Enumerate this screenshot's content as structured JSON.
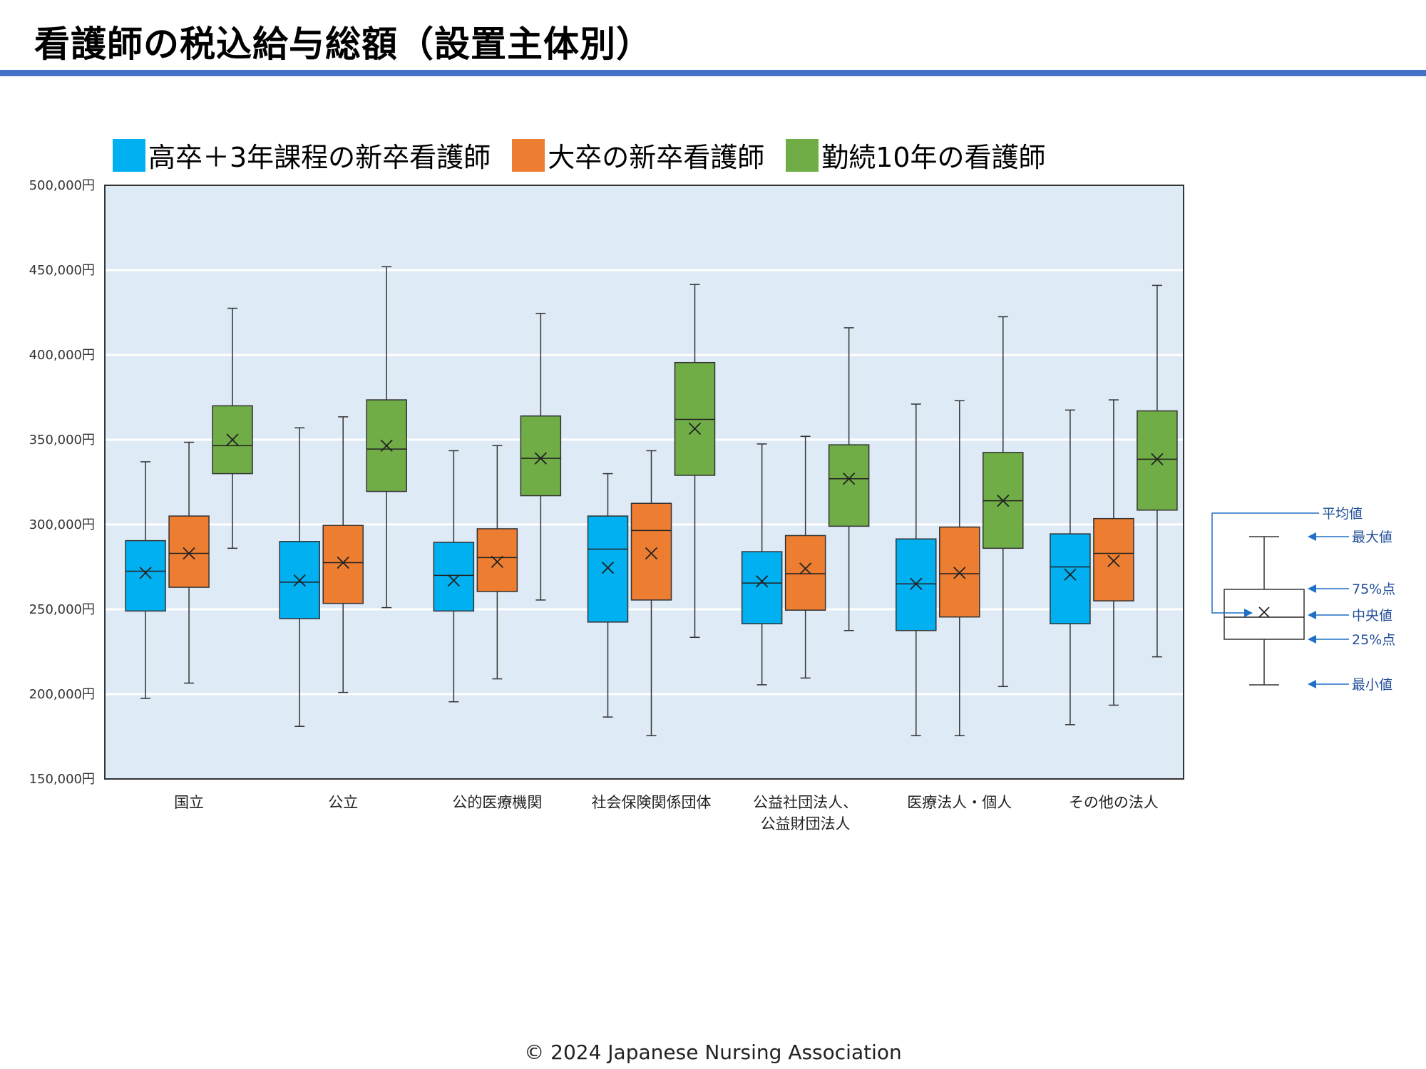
{
  "title": "看護師の税込給与総額（設置主体別）",
  "footer": "© 2024 Japanese Nursing Association",
  "colors": {
    "series_1": "#00B0F0",
    "series_2": "#ED7D31",
    "series_3": "#70AD47",
    "plot_bg": "#DEEAF6",
    "accent_rule": "#4472C4",
    "key_arrow": "#1F6FC5"
  },
  "chart_data": {
    "type": "box",
    "y_tick_labels": [
      "150,000円",
      "200,000円",
      "250,000円",
      "300,000円",
      "350,000円",
      "400,000円",
      "450,000円",
      "500,000円"
    ],
    "ylim": [
      150000,
      500000
    ],
    "y_step": 50000,
    "grid": true,
    "legend_position": "top",
    "categories": [
      "国立",
      "公立",
      "公的医療機関",
      "社会保険関係団体",
      "公益社団法人、\n公益財団法人",
      "医療法人・個人",
      "その他の法人"
    ],
    "series": [
      {
        "name": "高卒＋3年課程の新卒看護師",
        "boxes": [
          {
            "min": 197500,
            "q1": 249000,
            "median": 272500,
            "q3": 290500,
            "max": 337000,
            "mean": 271500
          },
          {
            "min": 181000,
            "q1": 244500,
            "median": 266000,
            "q3": 290000,
            "max": 357000,
            "mean": 267000
          },
          {
            "min": 195500,
            "q1": 249000,
            "median": 270000,
            "q3": 289500,
            "max": 343500,
            "mean": 267000
          },
          {
            "min": 186500,
            "q1": 242500,
            "median": 285500,
            "q3": 305000,
            "max": 330000,
            "mean": 274500
          },
          {
            "min": 205500,
            "q1": 241500,
            "median": 265500,
            "q3": 284000,
            "max": 347500,
            "mean": 266500
          },
          {
            "min": 175500,
            "q1": 237500,
            "median": 265000,
            "q3": 291500,
            "max": 371000,
            "mean": 265000
          },
          {
            "min": 182000,
            "q1": 241500,
            "median": 275000,
            "q3": 294500,
            "max": 367500,
            "mean": 270500
          }
        ]
      },
      {
        "name": "大卒の新卒看護師",
        "boxes": [
          {
            "min": 206500,
            "q1": 263000,
            "median": 283000,
            "q3": 305000,
            "max": 348500,
            "mean": 283000
          },
          {
            "min": 201000,
            "q1": 253500,
            "median": 277500,
            "q3": 299500,
            "max": 363500,
            "mean": 277500
          },
          {
            "min": 209000,
            "q1": 260500,
            "median": 280500,
            "q3": 297500,
            "max": 346500,
            "mean": 278000
          },
          {
            "min": 175500,
            "q1": 255500,
            "median": 296500,
            "q3": 312500,
            "max": 343500,
            "mean": 283000
          },
          {
            "min": 209500,
            "q1": 249500,
            "median": 271000,
            "q3": 293500,
            "max": 352000,
            "mean": 274000
          },
          {
            "min": 175500,
            "q1": 245500,
            "median": 271000,
            "q3": 298500,
            "max": 373000,
            "mean": 271500
          },
          {
            "min": 193500,
            "q1": 255000,
            "median": 283000,
            "q3": 303500,
            "max": 373500,
            "mean": 278500
          }
        ]
      },
      {
        "name": "勤続10年の看護師",
        "boxes": [
          {
            "min": 286000,
            "q1": 330000,
            "median": 346500,
            "q3": 370000,
            "max": 427500,
            "mean": 350000
          },
          {
            "min": 251000,
            "q1": 319500,
            "median": 344500,
            "q3": 373500,
            "max": 452000,
            "mean": 346500
          },
          {
            "min": 255500,
            "q1": 317000,
            "median": 339000,
            "q3": 364000,
            "max": 424500,
            "mean": 339000
          },
          {
            "min": 233500,
            "q1": 329000,
            "median": 362000,
            "q3": 395500,
            "max": 441500,
            "mean": 356500
          },
          {
            "min": 237500,
            "q1": 299000,
            "median": 327000,
            "q3": 347000,
            "max": 416000,
            "mean": 327000
          },
          {
            "min": 204500,
            "q1": 286000,
            "median": 314000,
            "q3": 342500,
            "max": 422500,
            "mean": 314000
          },
          {
            "min": 222000,
            "q1": 308500,
            "median": 338500,
            "q3": 367000,
            "max": 441000,
            "mean": 338500
          }
        ]
      }
    ],
    "key": {
      "mean_label": "平均値",
      "max_label": "最大値",
      "q3_label": "75%点",
      "median_label": "中央値",
      "q1_label": "25%点",
      "min_label": "最小値"
    }
  }
}
